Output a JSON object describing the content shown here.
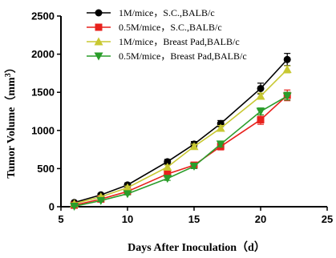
{
  "chart_data": {
    "type": "line",
    "xlabel": "Days After Inoculation（d）",
    "ylabel_prefix": "Tumor Volume（mm",
    "ylabel_sup": "3",
    "ylabel_suffix": "）",
    "xlim": [
      5,
      25
    ],
    "ylim": [
      0,
      2500
    ],
    "xticks": [
      5,
      10,
      15,
      20,
      25
    ],
    "yticks": [
      0,
      500,
      1000,
      1500,
      2000,
      2500
    ],
    "grid": false,
    "legend_position": "top-right",
    "x": [
      6,
      8,
      10,
      13,
      15,
      17,
      20,
      22
    ],
    "series": [
      {
        "name": "1M/mice，S.C.,BALB/c",
        "color": "#000000",
        "marker": "circle",
        "values": [
          55,
          155,
          285,
          590,
          820,
          1090,
          1550,
          1930
        ],
        "errors": [
          15,
          20,
          25,
          30,
          35,
          40,
          70,
          80
        ]
      },
      {
        "name": "0.5M/mice，S.C.,BALB/c",
        "color": "#e8211c",
        "marker": "square",
        "values": [
          20,
          100,
          200,
          430,
          545,
          790,
          1140,
          1460
        ],
        "errors": [
          10,
          15,
          20,
          30,
          35,
          45,
          60,
          70
        ]
      },
      {
        "name": "1M/mice，Breast Pad,BALB/c",
        "color": "#c8c832",
        "marker": "triangle-up",
        "values": [
          40,
          130,
          250,
          520,
          790,
          1030,
          1450,
          1800
        ],
        "errors": [
          10,
          15,
          20,
          25,
          30,
          35,
          40,
          45
        ]
      },
      {
        "name": "0.5M/mice，Breast Pad,BALB/c",
        "color": "#2a9d2a",
        "marker": "triangle-down",
        "values": [
          5,
          80,
          170,
          370,
          530,
          820,
          1250,
          1450
        ],
        "errors": [
          5,
          10,
          15,
          25,
          30,
          35,
          45,
          50
        ]
      }
    ]
  }
}
